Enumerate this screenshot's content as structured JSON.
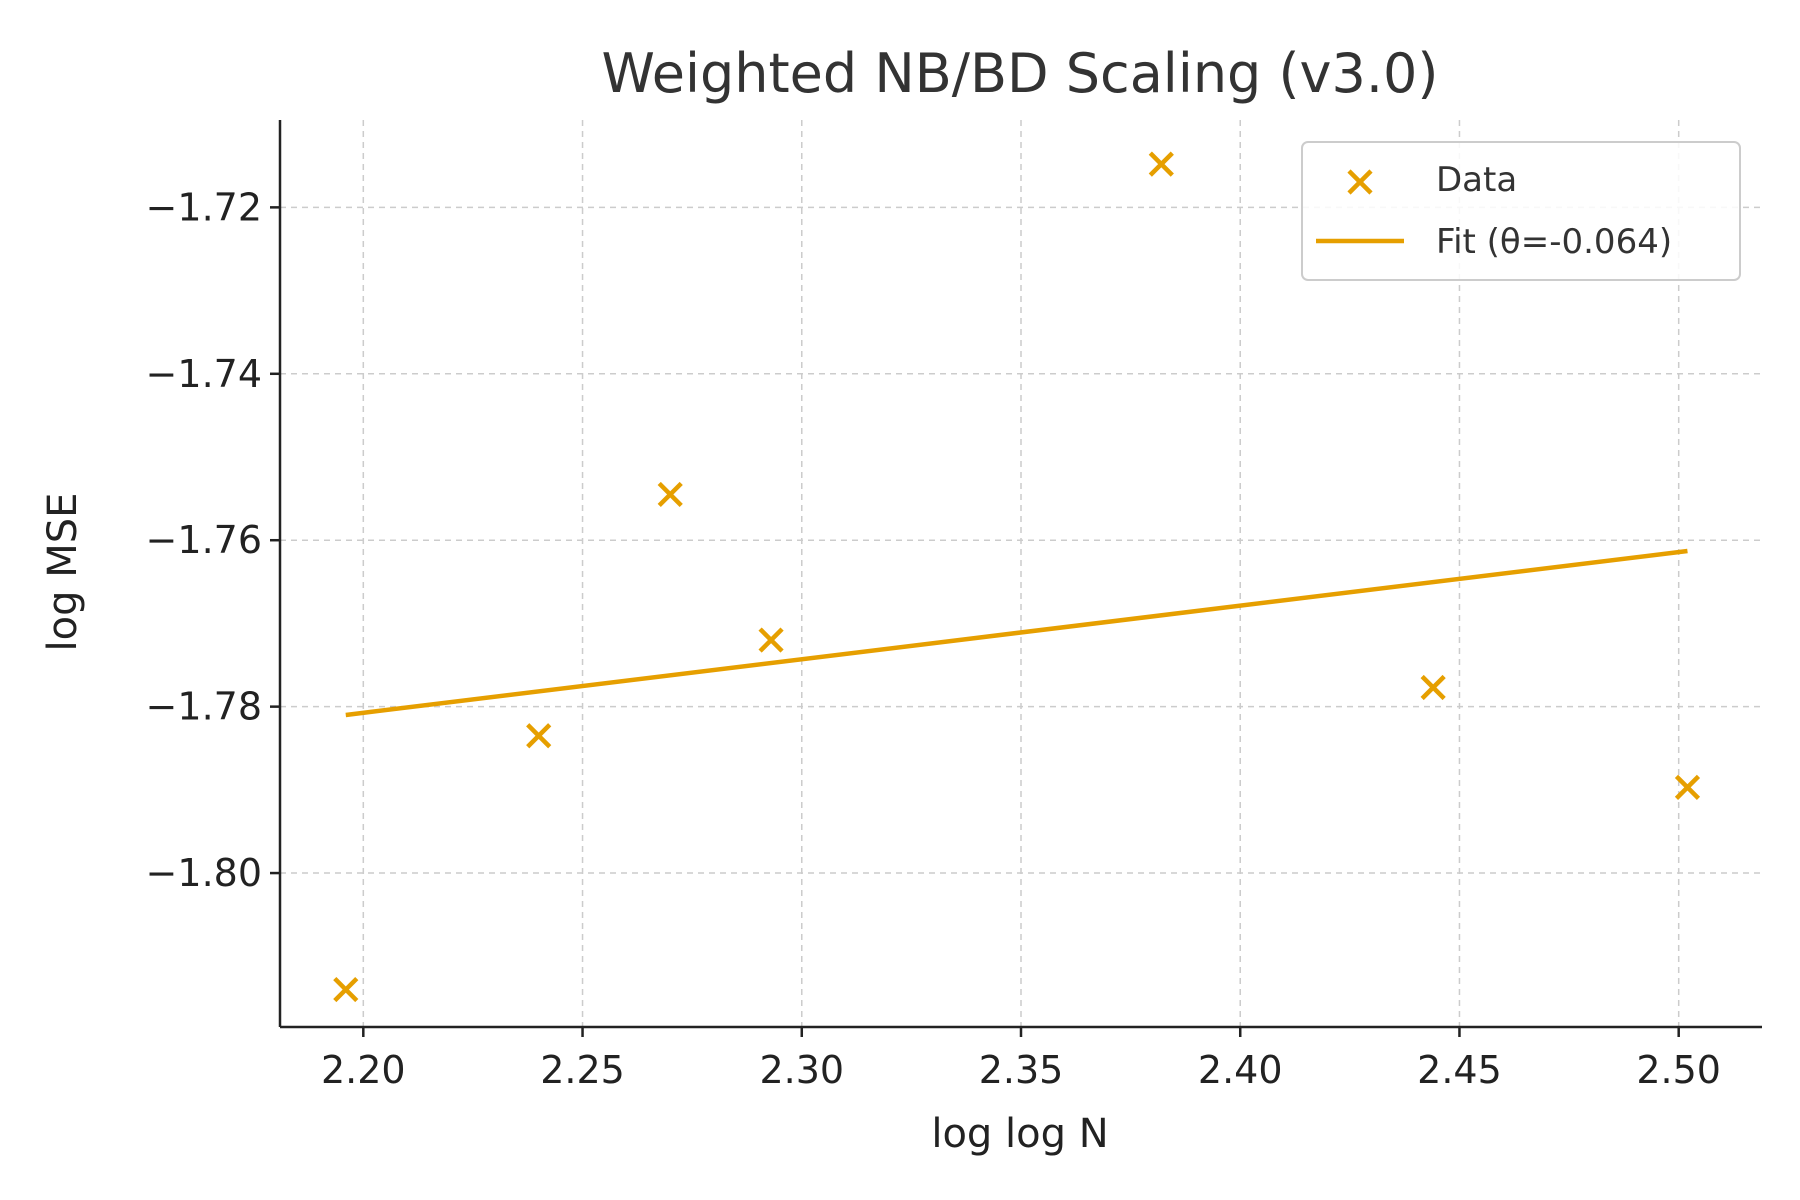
{
  "chart_data": {
    "type": "scatter",
    "title": "Weighted NB/BD Scaling (v3.0)",
    "xlabel": "log log N",
    "ylabel": "log MSE",
    "xlim": [
      2.181,
      2.519
    ],
    "ylim": [
      -1.8185,
      -1.7095
    ],
    "xticks": [
      2.2,
      2.25,
      2.3,
      2.35,
      2.4,
      2.45,
      2.5
    ],
    "xtick_labels": [
      "2.20",
      "2.25",
      "2.30",
      "2.35",
      "2.40",
      "2.45",
      "2.50"
    ],
    "yticks": [
      -1.72,
      -1.74,
      -1.76,
      -1.78,
      -1.8
    ],
    "ytick_labels": [
      "−1.72",
      "−1.74",
      "−1.76",
      "−1.78",
      "−1.80"
    ],
    "grid": true,
    "legend_position": "top-right",
    "series": [
      {
        "name": "Data",
        "kind": "scatter",
        "marker": "x",
        "color": "#E69F00",
        "points": [
          {
            "x": 2.196,
            "y": -1.814
          },
          {
            "x": 2.24,
            "y": -1.7835
          },
          {
            "x": 2.27,
            "y": -1.7545
          },
          {
            "x": 2.293,
            "y": -1.772
          },
          {
            "x": 2.382,
            "y": -1.7148
          },
          {
            "x": 2.444,
            "y": -1.7777
          },
          {
            "x": 2.502,
            "y": -1.7897
          }
        ]
      },
      {
        "name": "Fit (θ=-0.064)",
        "kind": "line",
        "color": "#E69F00",
        "points": [
          {
            "x": 2.196,
            "y": -1.781
          },
          {
            "x": 2.502,
            "y": -1.7613
          }
        ]
      }
    ]
  }
}
